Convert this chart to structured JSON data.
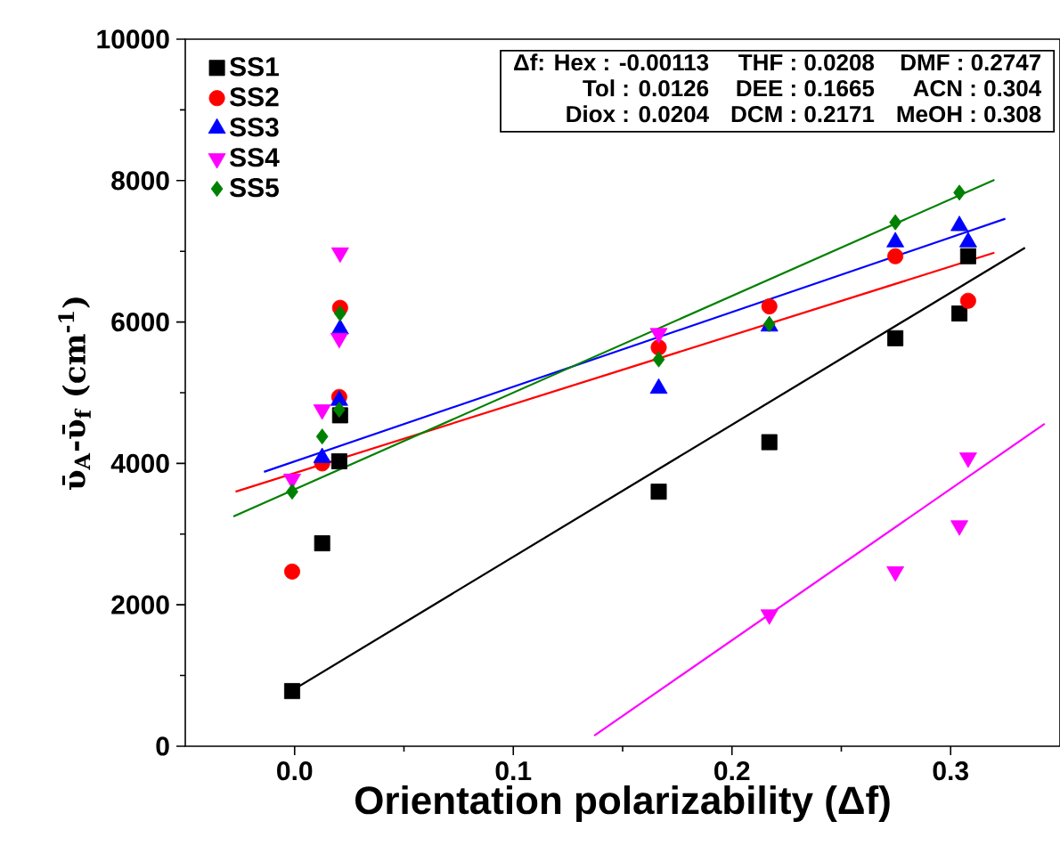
{
  "chart_data": {
    "type": "scatter",
    "xlabel": "Orientation polarizability (Δf)",
    "ylabel": "ῡ$_{A}$-ῡ$_{f}$ (cm$^{-1}$)",
    "xlim": [
      -0.05,
      0.35
    ],
    "ylim": [
      0,
      10000
    ],
    "xticks": [
      {
        "value": 0,
        "label": "0.0"
      },
      0.1,
      0.2,
      0.3
    ],
    "yticks": [
      0,
      2000,
      4000,
      6000,
      8000,
      10000
    ],
    "legend": "top left",
    "grid": false,
    "annotations": [
      "Δf: Hex : -0.00113",
      "Tol : 0.0126",
      "Diox : 0.0204",
      "THF : 0.0208",
      "DEE : 0.1665",
      "DCM : 0.2171",
      "DMF : 0.2747",
      "ACN : 0.304",
      "MeOH : 0.308"
    ],
    "series": [
      {
        "name": "SS1",
        "marker": "square",
        "color": "#000000",
        "x": [
          -0.00113,
          0.0126,
          0.0204,
          0.0208,
          0.1665,
          0.2171,
          0.2747,
          0.304,
          0.308
        ],
        "values": [
          780,
          2870,
          4030,
          4680,
          3600,
          4300,
          5770,
          6120,
          6930
        ]
      },
      {
        "name": "SS2",
        "marker": "circle",
        "color": "#ff0000",
        "x": [
          -0.00113,
          0.0126,
          0.0204,
          0.0208,
          0.1665,
          0.2171,
          0.2747,
          0.308
        ],
        "values": [
          2470,
          4000,
          4940,
          6200,
          5640,
          6220,
          6930,
          6300
        ]
      },
      {
        "name": "SS3",
        "marker": "triangle",
        "color": "#0000ff",
        "x": [
          0.0126,
          0.0204,
          0.0208,
          0.1665,
          0.2171,
          0.2747,
          0.304,
          0.308
        ],
        "values": [
          4080,
          4890,
          5900,
          5060,
          5940,
          7130,
          7360,
          7130
        ]
      },
      {
        "name": "SS4",
        "marker": "triangle-down",
        "color": "#ff00ff",
        "x": [
          -0.00113,
          0.0126,
          0.0204,
          0.0208,
          0.1665,
          0.2171,
          0.2747,
          0.304,
          0.308
        ],
        "values": [
          3780,
          4760,
          5770,
          6980,
          5840,
          1860,
          2470,
          3120,
          4080
        ]
      },
      {
        "name": "SS5",
        "marker": "diamond",
        "color": "#008000",
        "x": [
          -0.00113,
          0.0126,
          0.0204,
          0.0208,
          0.1665,
          0.2171,
          0.2747,
          0.304
        ],
        "values": [
          3600,
          4380,
          4760,
          6120,
          5470,
          5970,
          7410,
          7830
        ]
      },
      {
        "type": "line",
        "marker": "none",
        "color": "#000000",
        "x": [
          -0.0016,
          0.334
        ],
        "values": [
          780,
          7050
        ]
      },
      {
        "type": "line",
        "marker": "none",
        "color": "#ff0000",
        "x": [
          -0.027,
          0.32
        ],
        "values": [
          3600,
          6980
        ]
      },
      {
        "type": "line",
        "marker": "none",
        "color": "#0000ff",
        "x": [
          -0.014,
          0.325
        ],
        "values": [
          3880,
          7460
        ]
      },
      {
        "type": "line",
        "marker": "none",
        "color": "#008000",
        "x": [
          -0.028,
          0.32
        ],
        "values": [
          3250,
          8010
        ]
      },
      {
        "type": "line",
        "marker": "none",
        "color": "#ff00ff",
        "x": [
          0.137,
          0.343
        ],
        "values": [
          150,
          4560
        ]
      }
    ]
  }
}
